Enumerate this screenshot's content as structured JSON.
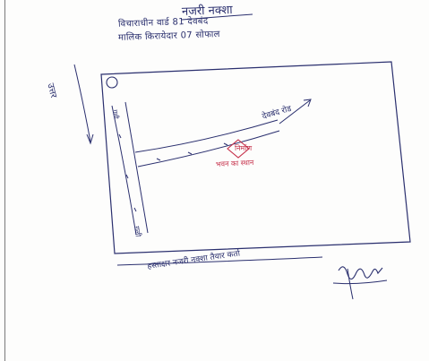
{
  "document": {
    "title": "नजरी नक्शा",
    "header_line_1": "विचाराधीन वार्ड 81 देवबंद",
    "header_line_2": "मालिक किरायेदार 07 सोफाल",
    "north_label": "उत्तर",
    "road_label": "देवबंद रोड",
    "lane_label_top": "गली",
    "lane_label_bottom": "गली",
    "site_marker": "निर्माण",
    "site_label": "भवन का स्थान",
    "footer_text": "हस्ताक्षर नजरी नक्शा तैयार कर्ता"
  },
  "colors": {
    "ink_blue": "#2a2f6e",
    "ink_red": "#c6304a",
    "paper": "#fdfdfc"
  }
}
